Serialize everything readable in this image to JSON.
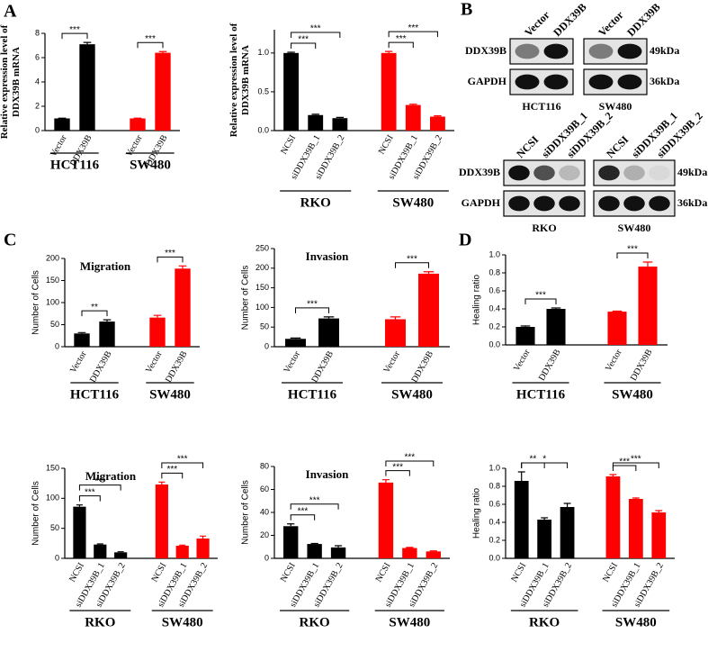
{
  "panel_labels": [
    "A",
    "B",
    "C",
    "D"
  ],
  "blots": [
    {
      "lanes": [
        "Vector",
        "DDX39B",
        "Vector",
        "DDX39B"
      ],
      "rows": [
        "DDX39B",
        "GAPDH"
      ],
      "sizes": [
        "49kDa",
        "36kDa"
      ],
      "cells": [
        "HCT116",
        "SW480"
      ]
    },
    {
      "lanes": [
        "NCSI",
        "siDDX39B_1",
        "siDDX39B_2",
        "NCSI",
        "siDDX39B_1",
        "siDDX39B_2"
      ],
      "rows": [
        "DDX39B",
        "GAPDH"
      ],
      "sizes": [
        "49kDa",
        "36kDa"
      ],
      "cells": [
        "RKO",
        "SW480"
      ]
    }
  ],
  "chart_data": [
    {
      "type": "bar",
      "ylabel": [
        "Relative expression level of",
        "DDX39B mRNA"
      ],
      "categories": [
        "Vector",
        "DDX39B",
        "Vector",
        "DDX39B"
      ],
      "groups": [
        "HCT116",
        "SW480"
      ],
      "values": [
        1,
        7.1,
        1,
        6.4
      ],
      "errors": [
        0.02,
        0.15,
        0.02,
        0.1
      ],
      "colors": [
        "#000000",
        "#000000",
        "#ff0000",
        "#ff0000"
      ],
      "ylim": [
        0,
        8
      ],
      "yticks": [
        0,
        2,
        4,
        6,
        8
      ],
      "significance": [
        {
          "pair": [
            0,
            1
          ],
          "label": "***"
        },
        {
          "pair": [
            2,
            3
          ],
          "label": "***"
        }
      ]
    },
    {
      "type": "bar",
      "ylabel": [
        "Relative expression level of",
        "DDX39B mRNA"
      ],
      "categories": [
        "NCSI",
        "siDDX39B_1",
        "siDDX39B_2",
        "NCSI",
        "siDDX39B_1",
        "siDDX39B_2"
      ],
      "groups": [
        "RKO",
        "SW480"
      ],
      "values": [
        1.0,
        0.2,
        0.16,
        1.0,
        0.33,
        0.18
      ],
      "errors": [
        0.01,
        0.01,
        0.01,
        0.02,
        0.01,
        0.01
      ],
      "colors": [
        "#000000",
        "#000000",
        "#000000",
        "#ff0000",
        "#ff0000",
        "#ff0000"
      ],
      "ylim": [
        0,
        1.3
      ],
      "yticks": [
        {
          "value": 0,
          "label": "0.0"
        },
        {
          "value": 0.5,
          "label": "0.5"
        },
        {
          "value": 1,
          "label": "1.0"
        }
      ],
      "significance": [
        {
          "pair": [
            0,
            1
          ],
          "label": "***"
        },
        {
          "pair": [
            0,
            2
          ],
          "label": "***"
        },
        {
          "pair": [
            3,
            4
          ],
          "label": "***"
        },
        {
          "pair": [
            3,
            5
          ],
          "label": "***"
        }
      ]
    },
    {
      "type": "bar",
      "title": "Migration",
      "ylabel": [
        "Number of Cells"
      ],
      "categories": [
        "Vector",
        "DDX39B",
        "Vector",
        "DDX39B"
      ],
      "groups": [
        "HCT116",
        "SW480"
      ],
      "values": [
        30,
        57,
        66,
        177
      ],
      "errors": [
        2,
        4,
        5,
        6
      ],
      "colors": [
        "#000000",
        "#000000",
        "#ff0000",
        "#ff0000"
      ],
      "ylim": [
        0,
        200
      ],
      "yticks": [
        0,
        50,
        100,
        150,
        200
      ],
      "significance": [
        {
          "pair": [
            0,
            1
          ],
          "label": "**"
        },
        {
          "pair": [
            2,
            3
          ],
          "label": "***"
        }
      ]
    },
    {
      "type": "bar",
      "title": "Invasion",
      "ylabel": [
        "Number of Cells"
      ],
      "categories": [
        "Vector",
        "DDX39B",
        "Vector",
        "DDX39B"
      ],
      "groups": [
        "HCT116",
        "SW480"
      ],
      "values": [
        20,
        72,
        70,
        186
      ],
      "errors": [
        2,
        4,
        6,
        5
      ],
      "colors": [
        "#000000",
        "#000000",
        "#ff0000",
        "#ff0000"
      ],
      "ylim": [
        0,
        250
      ],
      "yticks": [
        0,
        50,
        100,
        150,
        200,
        250
      ],
      "significance": [
        {
          "pair": [
            0,
            1
          ],
          "label": "***"
        },
        {
          "pair": [
            2,
            3
          ],
          "label": "***"
        }
      ]
    },
    {
      "type": "bar",
      "ylabel": [
        "Healing ratio"
      ],
      "categories": [
        "Vector",
        "DDX39B",
        "Vector",
        "DDX39B"
      ],
      "groups": [
        "HCT116",
        "SW480"
      ],
      "values": [
        0.2,
        0.4,
        0.37,
        0.87
      ],
      "errors": [
        0.01,
        0.01,
        0.005,
        0.05
      ],
      "colors": [
        "#000000",
        "#000000",
        "#ff0000",
        "#ff0000"
      ],
      "ylim": [
        0,
        1
      ],
      "yticks": [
        {
          "value": 0,
          "label": "0.0"
        },
        {
          "value": 0.2,
          "label": "0.2"
        },
        {
          "value": 0.4,
          "label": "0.4"
        },
        {
          "value": 0.6,
          "label": "0.6"
        },
        {
          "value": 0.8,
          "label": "0.8"
        },
        {
          "value": 1,
          "label": "1.0"
        }
      ],
      "significance": [
        {
          "pair": [
            0,
            1
          ],
          "label": "***"
        },
        {
          "pair": [
            2,
            3
          ],
          "label": "***"
        }
      ]
    },
    {
      "type": "bar",
      "title": "Migration",
      "ylabel": [
        "Number of Cells"
      ],
      "categories": [
        "NCSI",
        "siDDX39B_1",
        "siDDX39B_2",
        "NCSI",
        "siDDX39B_1",
        "siDDX39B_2"
      ],
      "groups": [
        "RKO",
        "SW480"
      ],
      "values": [
        86,
        23,
        10,
        123,
        21,
        33
      ],
      "errors": [
        3,
        1,
        1,
        4,
        1,
        4
      ],
      "colors": [
        "#000000",
        "#000000",
        "#000000",
        "#ff0000",
        "#ff0000",
        "#ff0000"
      ],
      "ylim": [
        0,
        150
      ],
      "yticks": [
        0,
        50,
        100,
        150
      ],
      "significance": [
        {
          "pair": [
            0,
            1
          ],
          "label": "***"
        },
        {
          "pair": [
            0,
            2
          ],
          "label": "***"
        },
        {
          "pair": [
            3,
            4
          ],
          "label": "***"
        },
        {
          "pair": [
            3,
            5
          ],
          "label": "***"
        }
      ]
    },
    {
      "type": "bar",
      "title": "Invasion",
      "ylabel": [
        "Number of Cells"
      ],
      "categories": [
        "NCSI",
        "siDDX39B_1",
        "siDDX39B_2",
        "NCSI",
        "siDDX39B_1",
        "siDDX39B_2"
      ],
      "groups": [
        "RKO",
        "SW480"
      ],
      "values": [
        28,
        12.5,
        9.5,
        66,
        9,
        6
      ],
      "errors": [
        2,
        0.5,
        1.5,
        2.5,
        0.5,
        0.5
      ],
      "colors": [
        "#000000",
        "#000000",
        "#000000",
        "#ff0000",
        "#ff0000",
        "#ff0000"
      ],
      "ylim": [
        0,
        80
      ],
      "yticks": [
        0,
        20,
        40,
        60,
        80
      ],
      "significance": [
        {
          "pair": [
            0,
            1
          ],
          "label": "***"
        },
        {
          "pair": [
            0,
            2
          ],
          "label": "***"
        },
        {
          "pair": [
            3,
            4
          ],
          "label": "***"
        },
        {
          "pair": [
            3,
            5
          ],
          "label": "***"
        }
      ]
    },
    {
      "type": "bar",
      "ylabel": [
        "Healing ratio"
      ],
      "categories": [
        "NCSI",
        "siDDX39B_1",
        "siDDX39B_2",
        "NCSI",
        "siDDX39B_1",
        "siDDX39B_2"
      ],
      "groups": [
        "RKO",
        "SW480"
      ],
      "values": [
        0.86,
        0.43,
        0.57,
        0.91,
        0.66,
        0.51
      ],
      "errors": [
        0.1,
        0.02,
        0.04,
        0.02,
        0.01,
        0.02
      ],
      "colors": [
        "#000000",
        "#000000",
        "#000000",
        "#ff0000",
        "#ff0000",
        "#ff0000"
      ],
      "ylim": [
        0,
        1
      ],
      "yticks": [
        {
          "value": 0,
          "label": "0.0"
        },
        {
          "value": 0.2,
          "label": "0.2"
        },
        {
          "value": 0.4,
          "label": "0.4"
        },
        {
          "value": 0.6,
          "label": "0.6"
        },
        {
          "value": 0.8,
          "label": "0.8"
        },
        {
          "value": 1,
          "label": "1.0"
        }
      ],
      "significance": [
        {
          "pair": [
            0,
            1
          ],
          "label": "**"
        },
        {
          "pair": [
            0,
            2
          ],
          "label": "*"
        },
        {
          "pair": [
            3,
            4
          ],
          "label": "***"
        },
        {
          "pair": [
            3,
            5
          ],
          "label": "***"
        }
      ]
    }
  ]
}
